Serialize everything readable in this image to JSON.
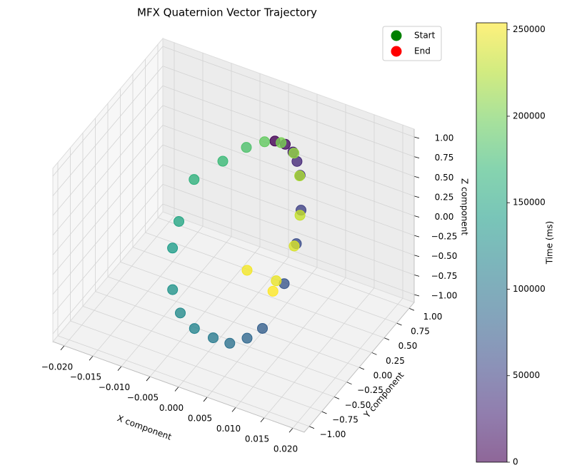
{
  "chart_data": {
    "type": "scatter3d",
    "title": "MFX Quaternion Vector Trajectory",
    "xlabel": "X component",
    "ylabel": "Y component",
    "zlabel": "Z component",
    "x": [
      0.002,
      0.0025,
      0.0027,
      0.0028,
      0.003,
      0.0035,
      0.004,
      0.0045,
      0.0055,
      0.005,
      0.0046,
      0.003,
      0.0006,
      -0.001,
      -0.002,
      -0.0028,
      -0.003,
      -0.0034,
      -0.001,
      0.0005,
      0.0015,
      0.0022,
      0.0027,
      0.003,
      0.0035,
      0.0038,
      0.0031,
      -0.002,
      0.0034
    ],
    "y": [
      0.6,
      0.75,
      0.88,
      0.95,
      0.99,
      0.95,
      0.8,
      0.5,
      -0.05,
      -0.3,
      -0.6,
      -0.75,
      -0.85,
      -0.95,
      -0.99,
      -0.9,
      -0.75,
      -0.4,
      -0.1,
      0.2,
      0.45,
      0.7,
      0.9,
      0.98,
      0.93,
      0.78,
      0.5,
      0.5,
      0.4
    ],
    "z": [
      0.8,
      0.66,
      0.47,
      0.3,
      0.1,
      -0.3,
      -0.6,
      -0.87,
      -1.0,
      -0.95,
      -0.8,
      -0.66,
      -0.53,
      -0.3,
      0.0,
      0.44,
      0.66,
      0.92,
      0.99,
      0.98,
      0.89,
      0.71,
      0.44,
      0.1,
      -0.35,
      -0.62,
      -0.87,
      -0.87,
      -0.92
    ],
    "c": [
      0,
      10000,
      20000,
      30000,
      40000,
      50000,
      60000,
      68000,
      76000,
      85000,
      95000,
      105000,
      115000,
      122000,
      130000,
      140000,
      150000,
      162000,
      172000,
      182000,
      192000,
      202000,
      212000,
      222000,
      232000,
      240000,
      246000,
      250000,
      254000
    ],
    "colormap": "viridis",
    "xlim": [
      -0.022,
      0.022
    ],
    "xticks": [
      {
        "value": -0.02,
        "label": "−0.020"
      },
      {
        "value": -0.015,
        "label": "−0.015"
      },
      {
        "value": -0.01,
        "label": "−0.010"
      },
      {
        "value": -0.005,
        "label": "−0.005"
      },
      {
        "value": 0,
        "label": "0.000"
      },
      {
        "value": 0.005,
        "label": "0.005"
      },
      {
        "value": 0.01,
        "label": "0.010"
      },
      {
        "value": 0.015,
        "label": "0.015"
      },
      {
        "value": 0.02,
        "label": "0.020"
      }
    ],
    "ylim": [
      -1.1,
      1.1
    ],
    "yticks": [
      {
        "value": -1,
        "label": "−1.00"
      },
      {
        "value": -0.75,
        "label": "−0.75"
      },
      {
        "value": -0.5,
        "label": "−0.50"
      },
      {
        "value": -0.25,
        "label": "−0.25"
      },
      {
        "value": 0,
        "label": "0.00"
      },
      {
        "value": 0.25,
        "label": "0.25"
      },
      {
        "value": 0.5,
        "label": "0.50"
      },
      {
        "value": 0.75,
        "label": "0.75"
      },
      {
        "value": 1,
        "label": "1.00"
      }
    ],
    "zlim": [
      -1.1,
      1.1
    ],
    "zticks": [
      {
        "value": -1,
        "label": "−1.00"
      },
      {
        "value": -0.75,
        "label": "−0.75"
      },
      {
        "value": -0.5,
        "label": "−0.50"
      },
      {
        "value": -0.25,
        "label": "−0.25"
      },
      {
        "value": 0,
        "label": "0.00"
      },
      {
        "value": 0.25,
        "label": "0.25"
      },
      {
        "value": 0.5,
        "label": "0.50"
      },
      {
        "value": 0.75,
        "label": "0.75"
      },
      {
        "value": 1,
        "label": "1.00"
      }
    ],
    "clim": [
      0,
      254000
    ],
    "cticks": [
      0,
      50000,
      100000,
      150000,
      200000,
      250000
    ],
    "clabel": "Time (ms)",
    "grid": true,
    "legend": {
      "loc": "upper right",
      "entries": [
        {
          "name": "Start",
          "color": "green"
        },
        {
          "name": "End",
          "color": "red"
        }
      ]
    }
  }
}
